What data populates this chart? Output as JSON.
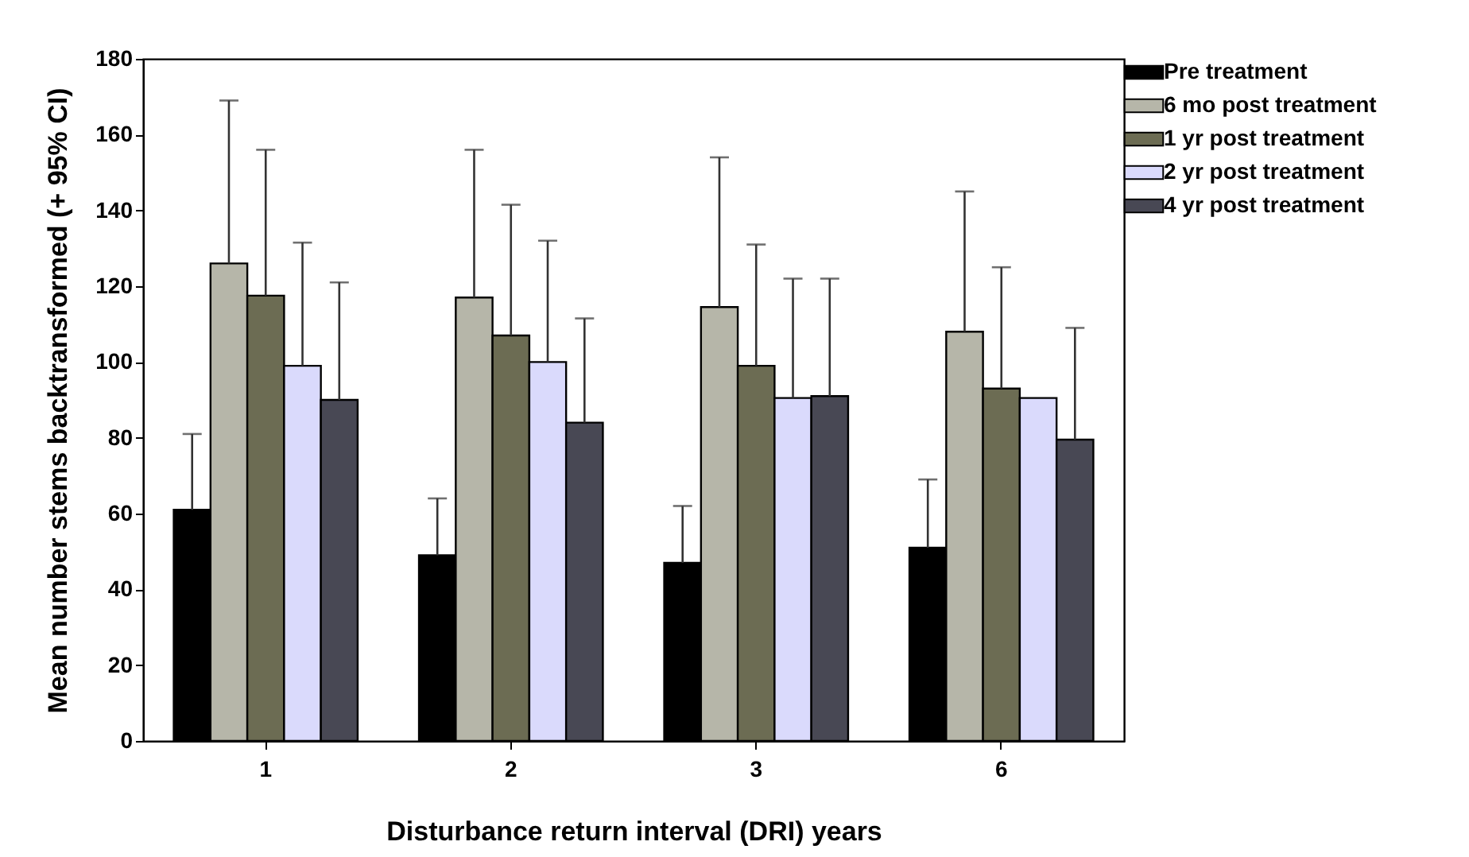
{
  "chart_data": {
    "type": "bar",
    "xlabel": "Disturbance return interval (DRI) years",
    "ylabel": "Mean number stems backtransformed (+ 95% CI)",
    "categories": [
      "1",
      "2",
      "3",
      "6"
    ],
    "series": [
      {
        "name": "Pre treatment",
        "color": "#000000",
        "values": [
          61,
          49,
          47,
          51
        ],
        "errors": [
          [
            61,
            81
          ],
          [
            49,
            64
          ],
          [
            47,
            62
          ],
          [
            51,
            69
          ]
        ]
      },
      {
        "name": "6 mo post treatment",
        "color": "#b6b6a9",
        "values": [
          126,
          117,
          114.5,
          108
        ],
        "errors": [
          [
            126,
            169
          ],
          [
            117,
            156
          ],
          [
            114.5,
            154
          ],
          [
            108,
            145
          ]
        ]
      },
      {
        "name": "1 yr post treatment",
        "color": "#6c6c53",
        "values": [
          117.5,
          107,
          99,
          93
        ],
        "errors": [
          [
            117.5,
            156
          ],
          [
            107,
            141.5
          ],
          [
            99,
            131
          ],
          [
            93,
            125
          ]
        ]
      },
      {
        "name": "2 yr post treatment",
        "color": "#dadafc",
        "values": [
          99,
          100,
          90.5,
          90.5
        ],
        "errors": [
          [
            99,
            131.5
          ],
          [
            100,
            132
          ],
          [
            90.5,
            122
          ],
          null
        ]
      },
      {
        "name": "4 yr post treatment",
        "color": "#484854",
        "values": [
          90,
          84,
          91,
          79.5
        ],
        "errors": [
          [
            90,
            121
          ],
          [
            84,
            111.5
          ],
          [
            91,
            122
          ],
          [
            79.5,
            109
          ]
        ]
      }
    ],
    "ylim": [
      0,
      180
    ],
    "yticks": [
      0,
      20,
      40,
      60,
      80,
      100,
      120,
      140,
      160,
      180
    ],
    "grid": false,
    "legend": "top right"
  }
}
